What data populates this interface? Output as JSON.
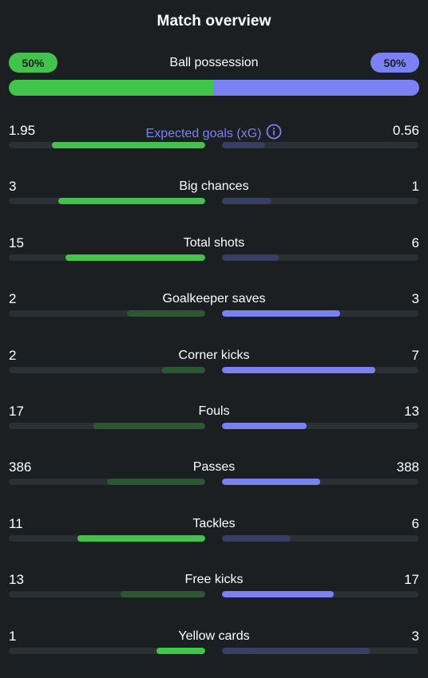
{
  "title": "Match overview",
  "possession": {
    "label": "Ball possession",
    "home": "50%",
    "away": "50%",
    "home_fraction": 0.5
  },
  "colors": {
    "home": "#42c34b",
    "away": "#7b80f2",
    "home_muted": "#2e5634",
    "away_muted": "#393f62"
  },
  "stats": [
    {
      "label": "Expected goals (xG)",
      "home": "1.95",
      "away": "0.56",
      "home_fill": 0.78,
      "away_fill": 0.22,
      "leader": "home",
      "info_icon": "info-icon"
    },
    {
      "label": "Big chances",
      "home": "3",
      "away": "1",
      "home_fill": 0.75,
      "away_fill": 0.25,
      "leader": "home"
    },
    {
      "label": "Total shots",
      "home": "15",
      "away": "6",
      "home_fill": 0.71,
      "away_fill": 0.29,
      "leader": "home"
    },
    {
      "label": "Goalkeeper saves",
      "home": "2",
      "away": "3",
      "home_fill": 0.4,
      "away_fill": 0.6,
      "leader": "away"
    },
    {
      "label": "Corner kicks",
      "home": "2",
      "away": "7",
      "home_fill": 0.22,
      "away_fill": 0.78,
      "leader": "away"
    },
    {
      "label": "Fouls",
      "home": "17",
      "away": "13",
      "home_fill": 0.57,
      "away_fill": 0.43,
      "leader": "away"
    },
    {
      "label": "Passes",
      "home": "386",
      "away": "388",
      "home_fill": 0.5,
      "away_fill": 0.5,
      "leader": "away"
    },
    {
      "label": "Tackles",
      "home": "11",
      "away": "6",
      "home_fill": 0.65,
      "away_fill": 0.35,
      "leader": "home"
    },
    {
      "label": "Free kicks",
      "home": "13",
      "away": "17",
      "home_fill": 0.43,
      "away_fill": 0.57,
      "leader": "away"
    },
    {
      "label": "Yellow cards",
      "home": "1",
      "away": "3",
      "home_fill": 0.25,
      "away_fill": 0.75,
      "leader": "home"
    }
  ]
}
